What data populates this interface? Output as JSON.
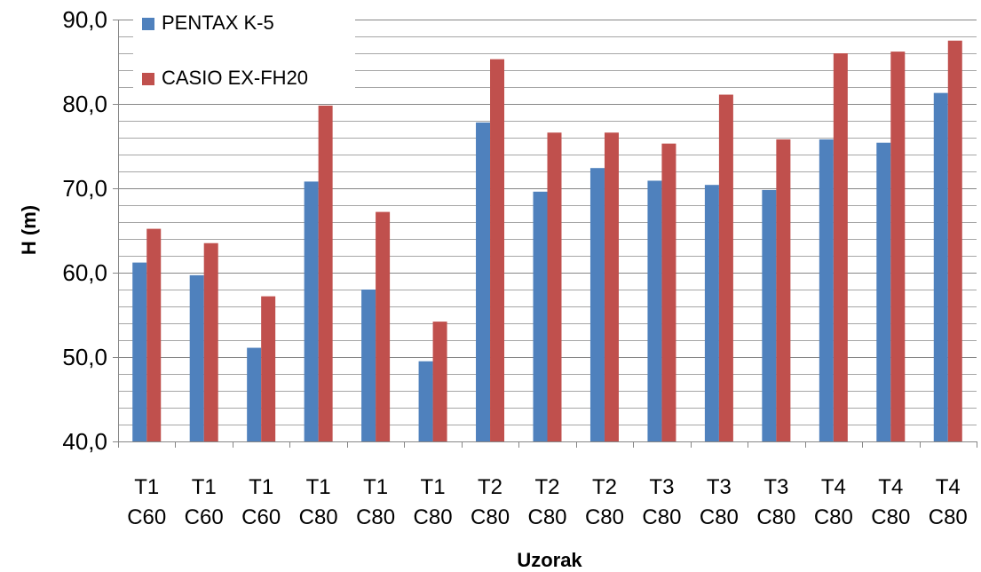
{
  "chart_data": {
    "type": "bar",
    "xlabel": "Uzorak",
    "ylabel": "H (m)",
    "ylim": [
      40,
      90
    ],
    "yticks": [
      "40,0",
      "50,0",
      "60,0",
      "70,0",
      "80,0",
      "90,0"
    ],
    "ytick_values": [
      40,
      50,
      60,
      70,
      80,
      90
    ],
    "minor_grid_step": 2,
    "grid": true,
    "legend_position": "top-left",
    "categories": [
      [
        "T1",
        "C60"
      ],
      [
        "T1",
        "C60"
      ],
      [
        "T1",
        "C60"
      ],
      [
        "T1",
        "C80"
      ],
      [
        "T1",
        "C80"
      ],
      [
        "T1",
        "C80"
      ],
      [
        "T2",
        "C80"
      ],
      [
        "T2",
        "C80"
      ],
      [
        "T2",
        "C80"
      ],
      [
        "T3",
        "C80"
      ],
      [
        "T3",
        "C80"
      ],
      [
        "T3",
        "C80"
      ],
      [
        "T4",
        "C80"
      ],
      [
        "T4",
        "C80"
      ],
      [
        "T4",
        "C80"
      ]
    ],
    "series": [
      {
        "name": "PENTAX K-5",
        "color": "#4F81BD",
        "values": [
          61.2,
          59.7,
          51.1,
          70.8,
          58.0,
          49.5,
          77.8,
          69.6,
          72.4,
          70.9,
          70.4,
          69.8,
          75.8,
          75.4,
          81.3
        ]
      },
      {
        "name": "CASIO EX-FH20",
        "color": "#C0504D",
        "values": [
          65.2,
          63.5,
          57.2,
          79.8,
          67.2,
          54.2,
          85.3,
          76.6,
          76.6,
          75.3,
          81.1,
          75.8,
          86.0,
          86.2,
          87.5
        ]
      }
    ]
  }
}
